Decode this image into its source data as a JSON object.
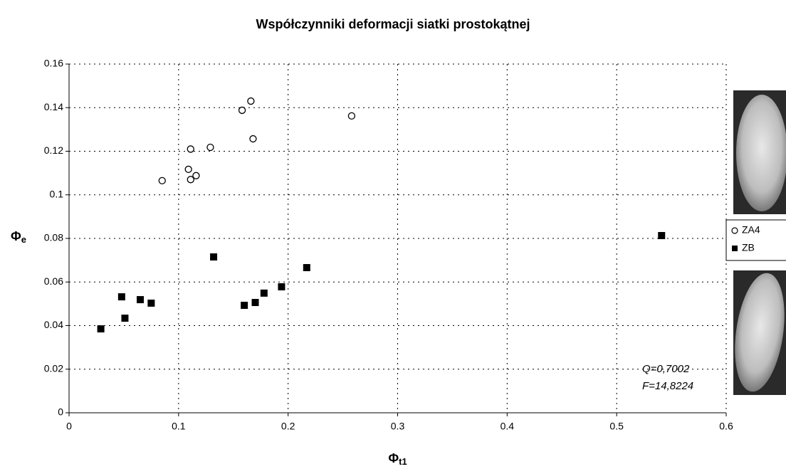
{
  "chart_data": {
    "type": "scatter",
    "title": "Współczynniki deformacji siatki prostokątnej",
    "xlabel": {
      "symbol": "Φ",
      "sub": "t1"
    },
    "ylabel": {
      "symbol": "Φ",
      "sub": "e"
    },
    "xlim": [
      0,
      0.6
    ],
    "xticks": [
      0,
      0.1,
      0.2,
      0.3,
      0.4,
      0.5,
      0.6
    ],
    "ylim": [
      0,
      0.16
    ],
    "yticks": [
      0,
      0.02,
      0.04,
      0.06,
      0.08,
      0.1,
      0.12,
      0.14,
      0.16
    ],
    "grid": true,
    "legend": "right",
    "series": [
      {
        "name": "ZA4",
        "marker": "circle",
        "color": "#000000",
        "x": [
          0.085,
          0.109,
          0.111,
          0.111,
          0.116,
          0.129,
          0.158,
          0.166,
          0.168,
          0.258
        ],
        "y": [
          0.1065,
          0.1117,
          0.121,
          0.107,
          0.1088,
          0.1218,
          0.1388,
          0.143,
          0.1257,
          0.1362
        ]
      },
      {
        "name": "ZB",
        "marker": "square",
        "color": "#000000",
        "x": [
          0.029,
          0.048,
          0.051,
          0.065,
          0.075,
          0.132,
          0.16,
          0.17,
          0.178,
          0.194,
          0.217,
          0.541
        ],
        "y": [
          0.0385,
          0.0532,
          0.0434,
          0.0519,
          0.0503,
          0.0715,
          0.0493,
          0.0506,
          0.0549,
          0.0578,
          0.0666,
          0.0813
        ]
      }
    ],
    "annotations": [
      "Q=0,7002",
      "F=14,8224"
    ]
  }
}
